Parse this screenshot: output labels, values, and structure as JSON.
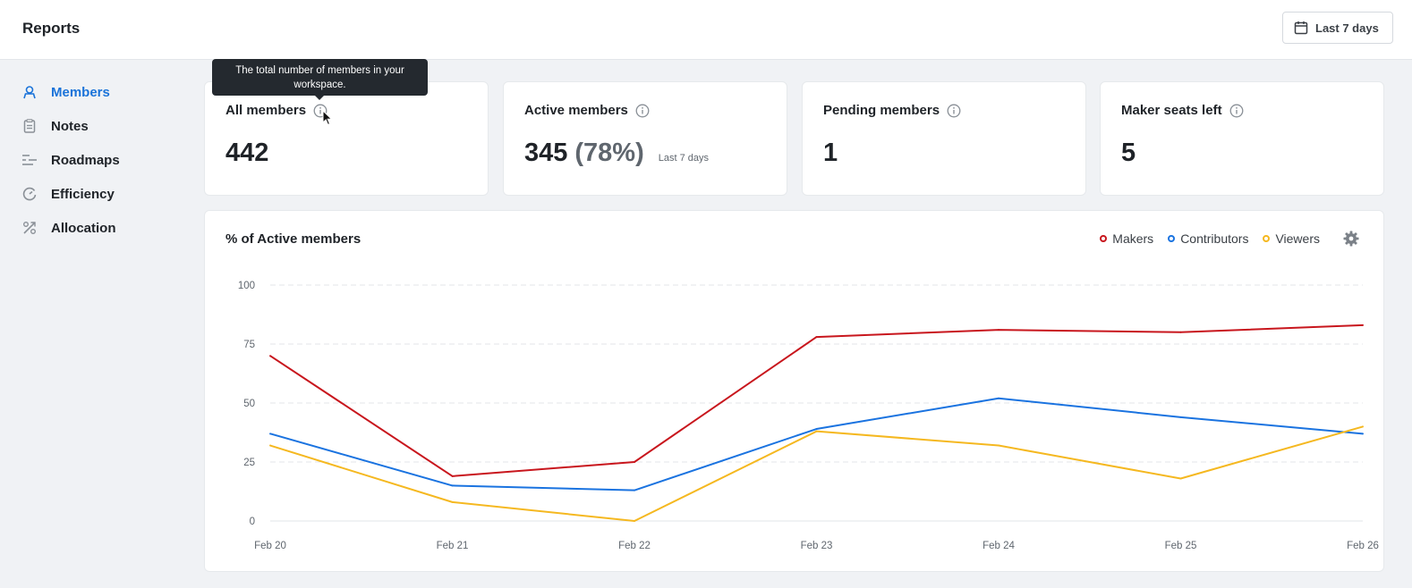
{
  "header": {
    "title": "Reports",
    "date_range_label": "Last 7 days",
    "date_icon": "calendar-icon"
  },
  "sidebar": {
    "items": [
      {
        "label": "Members",
        "icon": "members-icon",
        "active": true
      },
      {
        "label": "Notes",
        "icon": "notes-icon",
        "active": false
      },
      {
        "label": "Roadmaps",
        "icon": "roadmaps-icon",
        "active": false
      },
      {
        "label": "Efficiency",
        "icon": "efficiency-icon",
        "active": false
      },
      {
        "label": "Allocation",
        "icon": "allocation-icon",
        "active": false
      }
    ]
  },
  "stats": [
    {
      "title": "All members",
      "value": "442"
    },
    {
      "title": "Active members",
      "value": "345",
      "percent": "(78%)",
      "sub": "Last 7 days"
    },
    {
      "title": "Pending members",
      "value": "1"
    },
    {
      "title": "Maker seats left",
      "value": "5"
    }
  ],
  "tooltip": {
    "text": "The total number of members in your workspace."
  },
  "chart": {
    "title": "% of Active members"
  },
  "colors": {
    "accent": "#1a73d9",
    "makers": "#c8161d",
    "contributors": "#1a73e0",
    "viewers": "#f5b820"
  },
  "chart_data": {
    "type": "line",
    "title": "% of Active members",
    "categories": [
      "Feb 20",
      "Feb 21",
      "Feb 22",
      "Feb 23",
      "Feb 24",
      "Feb 25",
      "Feb 26"
    ],
    "ylim": [
      0,
      100
    ],
    "yticks": [
      0,
      25,
      50,
      75,
      100
    ],
    "grid": true,
    "legend_position": "top-right",
    "series": [
      {
        "name": "Makers",
        "color": "#c8161d",
        "values": [
          70,
          19,
          25,
          78,
          81,
          80,
          83
        ]
      },
      {
        "name": "Contributors",
        "color": "#1a73e0",
        "values": [
          37,
          15,
          13,
          39,
          52,
          44,
          37
        ]
      },
      {
        "name": "Viewers",
        "color": "#f5b820",
        "values": [
          32,
          8,
          0,
          38,
          32,
          18,
          40
        ]
      }
    ]
  }
}
